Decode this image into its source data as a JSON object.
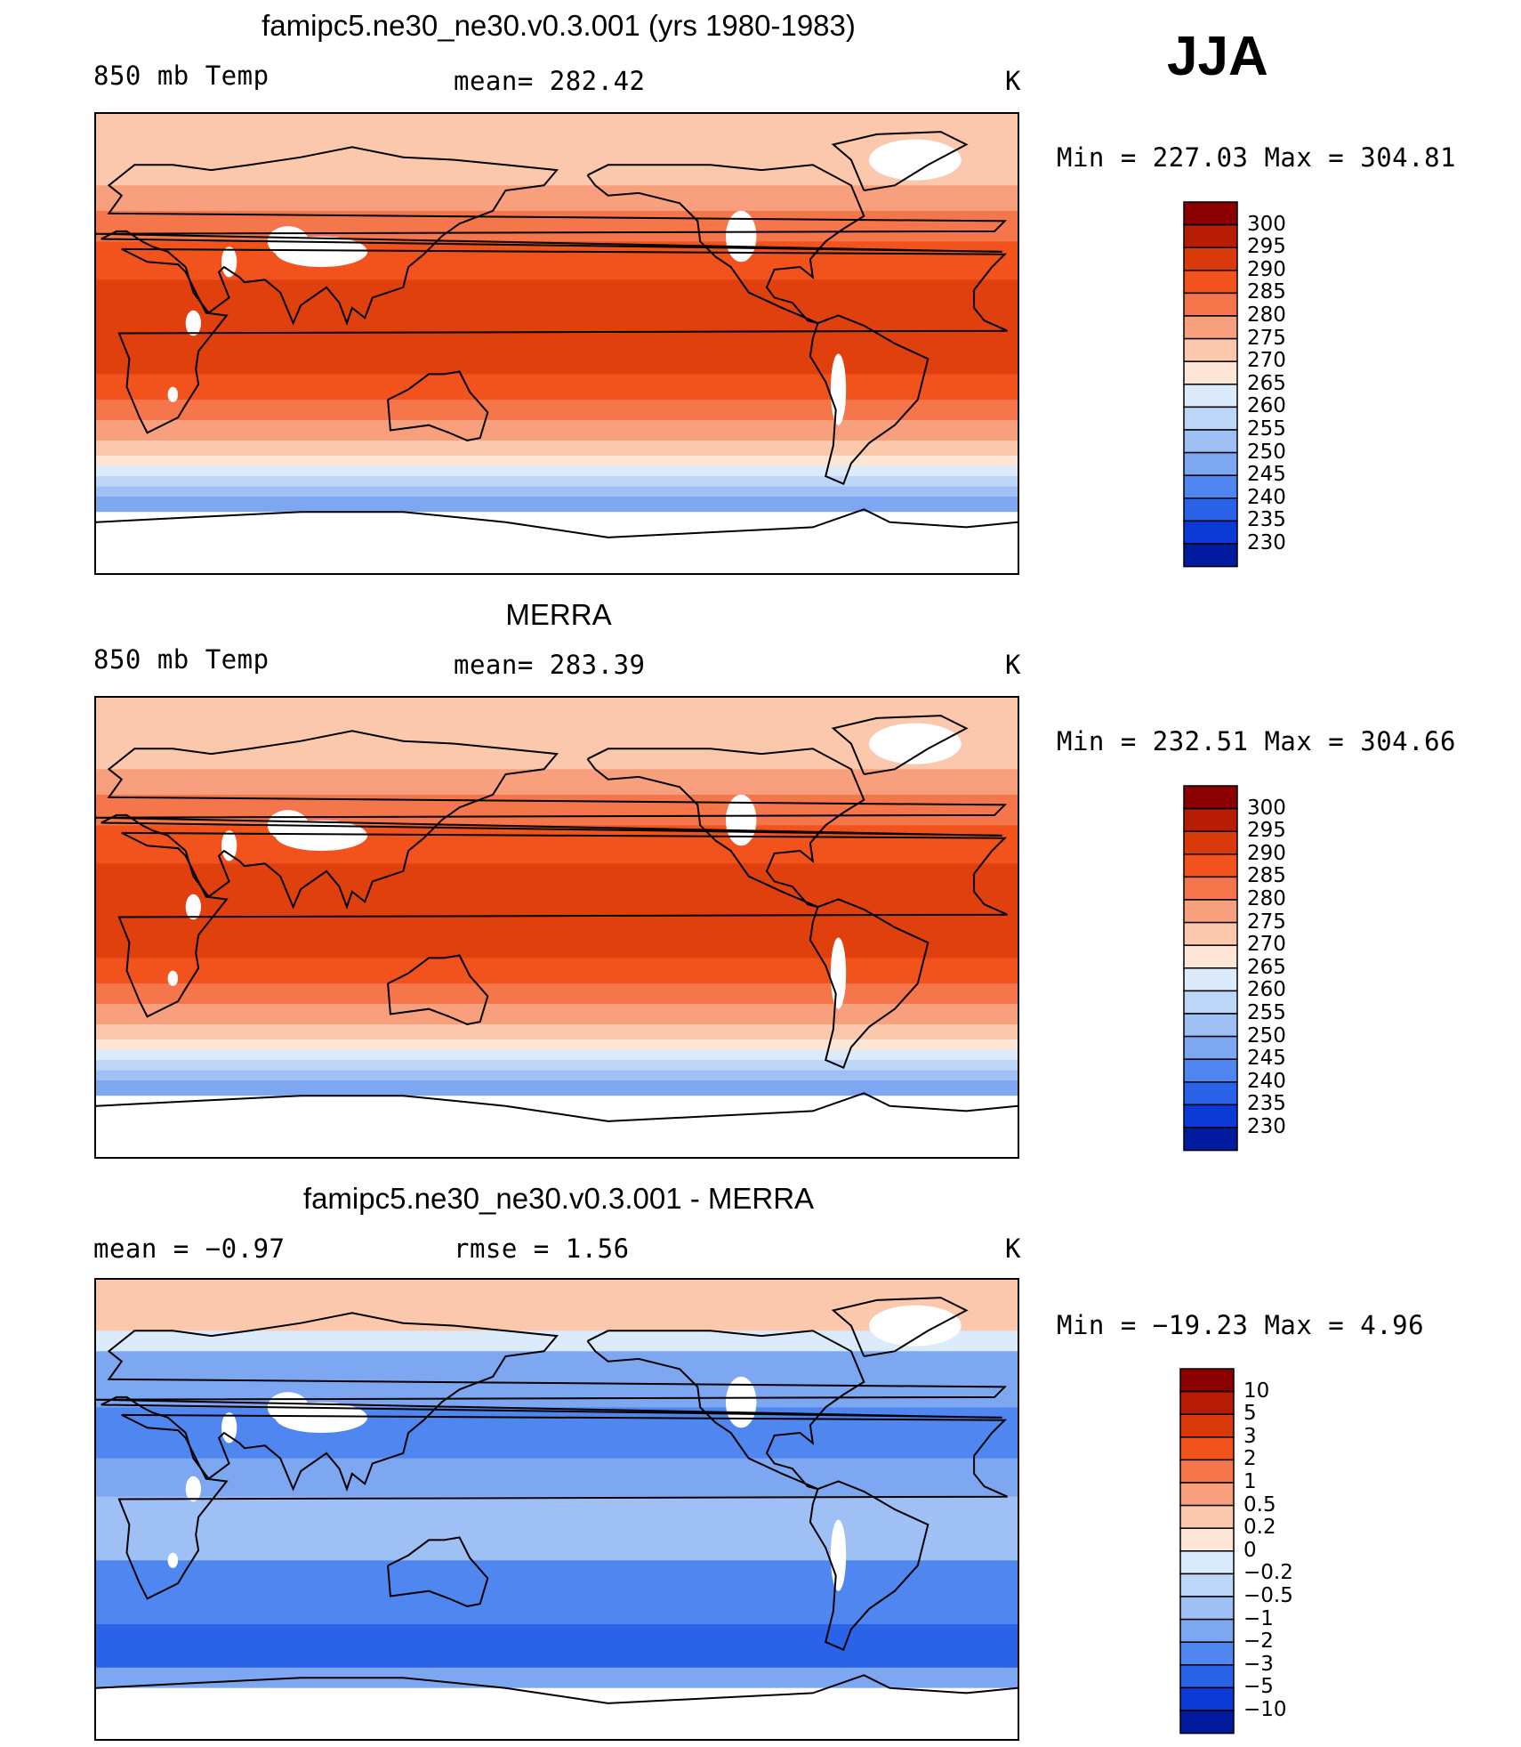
{
  "header": {
    "season": "JJA"
  },
  "chart_data": [
    {
      "type": "heatmap",
      "title": "famipc5.ne30_ne30.v0.3.001 (yrs 1980-1983)",
      "left_label": "850 mb Temp",
      "center_label": "mean= 282.42",
      "right_label": "K",
      "mean": 282.42,
      "min": 227.03,
      "max": 304.81,
      "stats_text": "Min = 227.03 Max = 304.81",
      "xlim": [
        0,
        360
      ],
      "ylim": [
        -90,
        90
      ],
      "colorbar_levels": [
        "300",
        "295",
        "290",
        "285",
        "280",
        "275",
        "270",
        "265",
        "260",
        "255",
        "250",
        "245",
        "240",
        "235",
        "230"
      ],
      "colorbar_colors": [
        "#8b0000",
        "#b71c05",
        "#d93a0c",
        "#f2521c",
        "#f5764a",
        "#f8a07d",
        "#fbc8ad",
        "#fde6d6",
        "#dcebfb",
        "#bcd6f7",
        "#9fc0f4",
        "#7ea7f1",
        "#4f86ef",
        "#2a62e8",
        "#0c3ad6",
        "#021a9e"
      ]
    },
    {
      "type": "heatmap",
      "title": "MERRA",
      "left_label": "850 mb Temp",
      "center_label": "mean= 283.39",
      "right_label": "K",
      "mean": 283.39,
      "min": 232.51,
      "max": 304.66,
      "stats_text": "Min = 232.51 Max = 304.66",
      "xlim": [
        0,
        360
      ],
      "ylim": [
        -90,
        90
      ],
      "colorbar_levels": [
        "300",
        "295",
        "290",
        "285",
        "280",
        "275",
        "270",
        "265",
        "260",
        "255",
        "250",
        "245",
        "240",
        "235",
        "230"
      ],
      "colorbar_colors": [
        "#8b0000",
        "#b71c05",
        "#d93a0c",
        "#f2521c",
        "#f5764a",
        "#f8a07d",
        "#fbc8ad",
        "#fde6d6",
        "#dcebfb",
        "#bcd6f7",
        "#9fc0f4",
        "#7ea7f1",
        "#4f86ef",
        "#2a62e8",
        "#0c3ad6",
        "#021a9e"
      ]
    },
    {
      "type": "heatmap",
      "title": "famipc5.ne30_ne30.v0.3.001 - MERRA",
      "left_label": "mean =   −0.97",
      "center_label": "rmse =    1.56",
      "right_label": "K",
      "mean": -0.97,
      "rmse": 1.56,
      "min": -19.23,
      "max": 4.96,
      "stats_text": "Min = −19.23 Max =    4.96",
      "xlim": [
        0,
        360
      ],
      "ylim": [
        -90,
        90
      ],
      "colorbar_levels": [
        "10",
        "5",
        "3",
        "2",
        "1",
        "0.5",
        "0.2",
        "0",
        "−0.2",
        "−0.5",
        "−1",
        "−2",
        "−3",
        "−5",
        "−10"
      ],
      "colorbar_colors": [
        "#8b0000",
        "#b71c05",
        "#d93a0c",
        "#f2521c",
        "#f5764a",
        "#f8a07d",
        "#fbc8ad",
        "#fde6d6",
        "#dcebfb",
        "#bcd6f7",
        "#9fc0f4",
        "#7ea7f1",
        "#4f86ef",
        "#2a62e8",
        "#0c3ad6",
        "#021a9e"
      ]
    }
  ]
}
